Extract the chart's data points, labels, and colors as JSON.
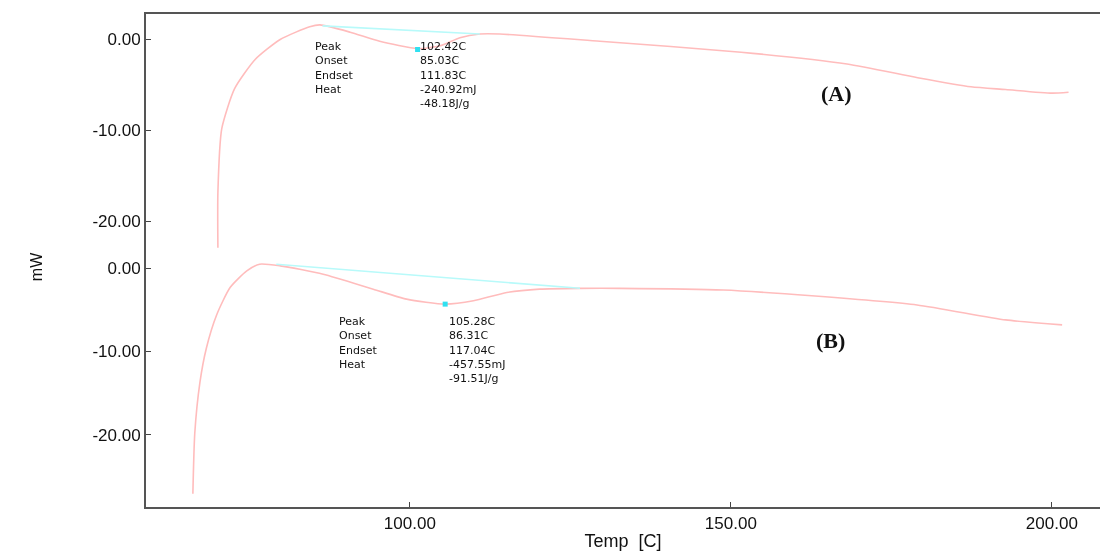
{
  "chart_data": [
    {
      "type": "line",
      "tick_labels": "y",
      "ylabel": "mW",
      "xlim": [
        58.9,
        207.5
      ],
      "ylim": [
        -23.7,
        2.8
      ],
      "yticks": [
        {
          "value": 0,
          "label": "0.00"
        },
        {
          "value": -10,
          "label": "-10.00"
        },
        {
          "value": -20,
          "label": "-20.00"
        }
      ],
      "annotations": [
        "Peak\nOnset\nEndset\nHeat",
        "102.42C\n85.03C\n111.83C\n-240.92mJ\n-48.18J/g",
        "(A)"
      ],
      "series": [
        {
          "color": "#ffbcbc",
          "x": [
            70.1,
            70.1,
            70.7,
            72.7,
            75.9,
            79.8,
            84.4,
            86.0,
            90.7,
            95.3,
            101.2,
            104.7,
            107.8,
            110.9,
            114.0,
            129.6,
            151.6,
            168.1,
            179.1,
            187.4,
            192.8,
            200.0,
            202.6
          ],
          "values": [
            -22.9,
            -16.8,
            -9.8,
            -5.4,
            -2.2,
            0,
            1.4,
            1.6,
            0.8,
            -0.2,
            -1.0,
            -0.7,
            0.2,
            0.6,
            0.6,
            -0.2,
            -1.4,
            -2.7,
            -4.2,
            -5.2,
            -5.5,
            -5.9,
            -5.8
          ]
        },
        {
          "color": "#b8fafa",
          "x": [
            86.4,
            110.9
          ],
          "values": [
            1.5,
            0.6
          ]
        },
        {
          "type": "scatter",
          "color": "#30e0f0",
          "x": [
            101.2
          ],
          "values": [
            -1.1
          ]
        }
      ]
    },
    {
      "type": "line",
      "xlabel": "Temp  [C]",
      "xlim": [
        58.9,
        207.5
      ],
      "ylim": [
        -28.7,
        1.6
      ],
      "xticks": [
        {
          "value": 100,
          "label": "100.00"
        },
        {
          "value": 150,
          "label": "150.00"
        },
        {
          "value": 200,
          "label": "200.00"
        }
      ],
      "yticks": [
        {
          "value": 0,
          "label": "0.00"
        },
        {
          "value": -10,
          "label": "-10.00"
        },
        {
          "value": -20,
          "label": "-20.00"
        }
      ],
      "annotations": [
        "Peak\nOnset\nEndset\nHeat",
        "105.28C\n86.31C\n117.04C\n-457.55mJ\n-91.51J/g",
        "(B)"
      ],
      "series": [
        {
          "color": "#ffbcbc",
          "x": [
            66.2,
            66.5,
            67.3,
            68.3,
            69.9,
            72.0,
            74.6,
            76.6,
            79.8,
            86.5,
            94.3,
            99.5,
            105.5,
            109.9,
            115.1,
            120.2,
            126.5,
            132.7,
            148.8,
            162.6,
            179.0,
            192.8,
            201.6
          ],
          "values": [
            -27.1,
            -19.8,
            -13.7,
            -9.6,
            -5.6,
            -2.3,
            -0.3,
            0.5,
            0.3,
            -0.7,
            -2.5,
            -3.7,
            -4.3,
            -3.9,
            -2.9,
            -2.5,
            -2.4,
            -2.4,
            -2.6,
            -3.3,
            -4.4,
            -6.2,
            -6.8
          ]
        },
        {
          "color": "#b8fafa",
          "x": [
            79.2,
            126.5
          ],
          "values": [
            0.5,
            -2.4
          ]
        },
        {
          "type": "scatter",
          "color": "#30e0f0",
          "x": [
            105.5
          ],
          "values": [
            -4.3
          ]
        }
      ]
    }
  ]
}
